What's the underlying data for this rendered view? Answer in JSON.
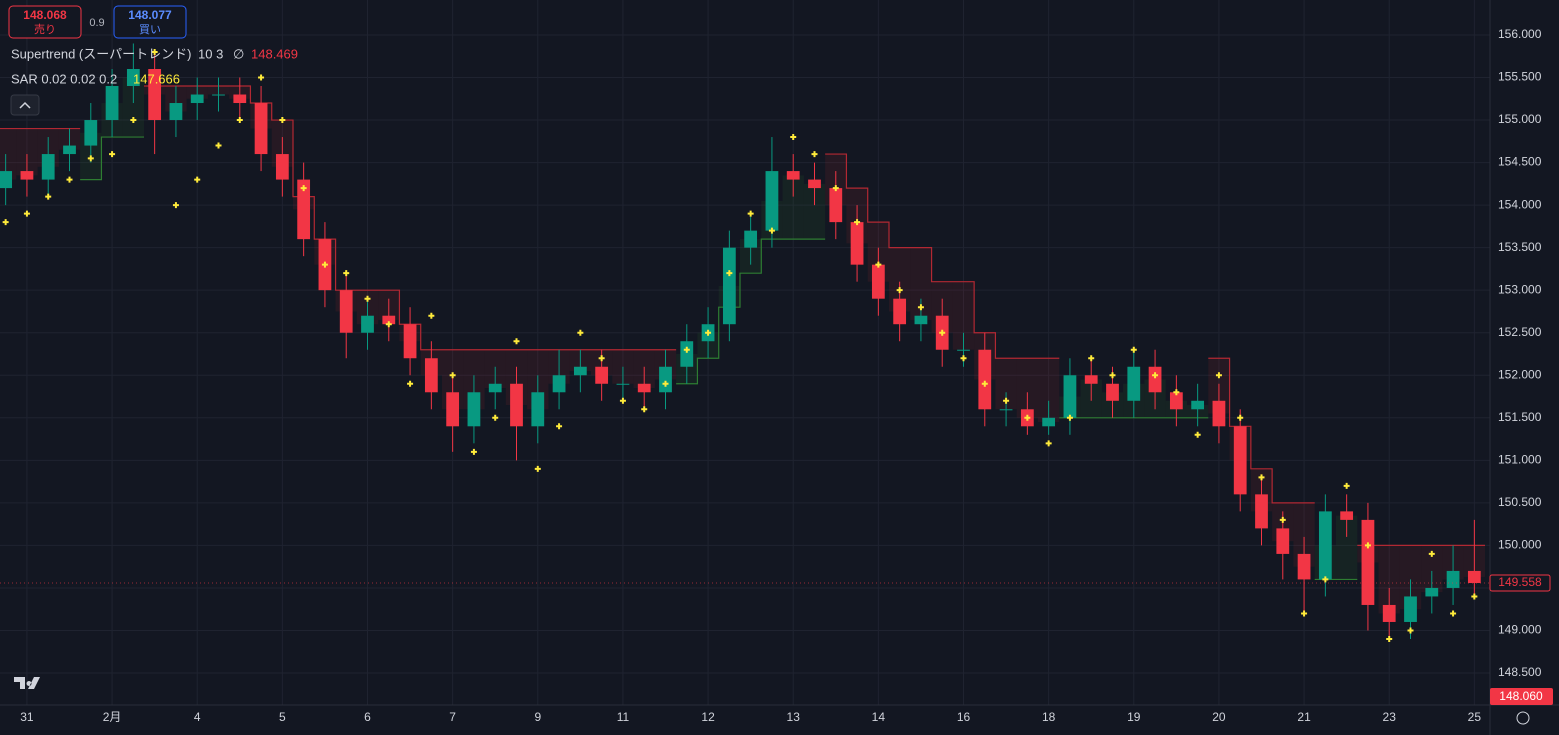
{
  "chart_data": {
    "type": "candlestick",
    "header": {
      "sell_price": "148.068",
      "sell_label": "売り",
      "spread": "0.9",
      "buy_price": "148.077",
      "buy_label": "買い",
      "supertrend_name": "Supertrend (スーパートレンド)",
      "supertrend_params": "10 3",
      "supertrend_symbol": "∅",
      "supertrend_value": "148.469",
      "sar_name": "SAR 0.02 0.02 0.2",
      "sar_value": "147.666"
    },
    "last_price_label": "149.558",
    "low_price_label": "148.060",
    "categories": [
      null,
      "31",
      null,
      null,
      null,
      "2月",
      null,
      null,
      null,
      "4",
      null,
      null,
      null,
      "5",
      null,
      null,
      null,
      "6",
      null,
      null,
      null,
      "7",
      null,
      null,
      null,
      "9",
      null,
      null,
      null,
      "11",
      null,
      null,
      null,
      "12",
      null,
      null,
      null,
      "13",
      null,
      null,
      null,
      "14",
      null,
      null,
      null,
      "16",
      null,
      null,
      null,
      "18",
      null,
      null,
      null,
      "19",
      null,
      null,
      null,
      "20",
      null,
      null,
      null,
      "21",
      null,
      null,
      null,
      "23",
      null,
      null,
      null,
      "25"
    ],
    "open": [
      154.2,
      154.4,
      154.3,
      154.6,
      154.7,
      155.0,
      155.4,
      155.6,
      155.0,
      155.2,
      155.3,
      155.3,
      155.2,
      154.6,
      154.3,
      153.6,
      153.0,
      152.5,
      152.7,
      152.6,
      152.2,
      151.8,
      151.4,
      151.8,
      151.9,
      151.4,
      151.8,
      152.0,
      152.1,
      151.9,
      151.9,
      151.8,
      152.1,
      152.4,
      152.6,
      153.5,
      153.7,
      154.4,
      154.3,
      154.2,
      153.8,
      153.3,
      152.9,
      152.6,
      152.7,
      152.3,
      152.3,
      151.6,
      151.6,
      151.4,
      151.5,
      152.0,
      151.9,
      151.7,
      152.1,
      151.8,
      151.6,
      151.7,
      151.4,
      150.6,
      150.2,
      149.9,
      149.6,
      150.4,
      150.3,
      149.3,
      149.1,
      149.4,
      149.5,
      149.7
    ],
    "high": [
      154.6,
      154.6,
      154.8,
      154.9,
      155.2,
      155.6,
      155.9,
      155.8,
      155.4,
      155.5,
      155.5,
      155.5,
      155.4,
      154.8,
      154.5,
      153.8,
      153.2,
      152.9,
      152.9,
      152.8,
      152.4,
      152.0,
      152.0,
      152.1,
      152.1,
      152.0,
      152.3,
      152.3,
      152.3,
      152.1,
      152.1,
      152.3,
      152.6,
      152.8,
      153.7,
      153.9,
      154.8,
      154.6,
      154.5,
      154.4,
      154.0,
      153.5,
      153.1,
      152.9,
      152.9,
      152.5,
      152.5,
      151.8,
      151.8,
      151.7,
      152.2,
      152.2,
      152.1,
      152.3,
      152.3,
      152.0,
      151.9,
      151.9,
      151.6,
      150.8,
      150.4,
      150.1,
      150.6,
      150.6,
      150.5,
      149.5,
      149.6,
      149.7,
      150.0,
      150.3
    ],
    "low": [
      154.0,
      154.1,
      154.1,
      154.4,
      154.5,
      154.8,
      155.2,
      154.6,
      154.8,
      155.0,
      155.1,
      155.0,
      154.4,
      154.1,
      153.4,
      152.8,
      152.2,
      152.3,
      152.4,
      152.0,
      151.6,
      151.1,
      151.2,
      151.6,
      151.0,
      151.2,
      151.6,
      151.8,
      151.7,
      151.7,
      151.6,
      151.6,
      151.9,
      152.2,
      152.4,
      153.3,
      153.5,
      154.1,
      154.0,
      153.6,
      153.1,
      152.7,
      152.4,
      152.4,
      152.1,
      152.1,
      151.4,
      151.4,
      151.3,
      151.3,
      151.3,
      151.7,
      151.5,
      151.5,
      151.6,
      151.4,
      151.4,
      151.2,
      150.4,
      150.0,
      149.6,
      149.2,
      149.4,
      150.1,
      149.0,
      148.9,
      148.9,
      149.2,
      149.3,
      149.4
    ],
    "close": [
      154.4,
      154.3,
      154.6,
      154.7,
      155.0,
      155.4,
      155.6,
      155.0,
      155.2,
      155.3,
      155.3,
      155.2,
      154.6,
      154.3,
      153.6,
      153.0,
      152.5,
      152.7,
      152.6,
      152.2,
      151.8,
      151.4,
      151.8,
      151.9,
      151.4,
      151.8,
      152.0,
      152.1,
      151.9,
      151.9,
      151.8,
      152.1,
      152.4,
      152.6,
      153.5,
      153.7,
      154.4,
      154.3,
      154.2,
      153.8,
      153.3,
      152.9,
      152.6,
      152.7,
      152.3,
      152.3,
      151.6,
      151.6,
      151.4,
      151.5,
      152.0,
      151.9,
      151.7,
      152.1,
      151.8,
      151.6,
      151.7,
      151.4,
      150.6,
      150.2,
      149.9,
      149.6,
      150.4,
      150.3,
      149.3,
      149.1,
      149.4,
      149.5,
      149.7,
      149.558
    ],
    "up_color": "#089981",
    "down_color": "#f23645",
    "sar": {
      "color": "#ffeb3b",
      "values": [
        153.8,
        153.9,
        154.1,
        154.3,
        154.55,
        154.6,
        155.0,
        155.8,
        154.0,
        154.3,
        154.7,
        155.0,
        155.5,
        155.0,
        154.2,
        153.3,
        153.2,
        152.9,
        152.6,
        151.9,
        152.7,
        152.0,
        151.1,
        151.5,
        152.4,
        150.9,
        151.4,
        152.5,
        152.2,
        151.7,
        151.6,
        151.9,
        152.3,
        152.5,
        153.2,
        153.9,
        153.7,
        154.8,
        154.6,
        154.2,
        153.8,
        153.3,
        153.0,
        152.8,
        152.5,
        152.2,
        151.9,
        151.7,
        151.5,
        151.2,
        151.5,
        152.2,
        152.0,
        152.3,
        152.0,
        151.8,
        151.3,
        152.0,
        151.5,
        150.8,
        150.3,
        149.2,
        149.6,
        150.7,
        150.0,
        148.9,
        149.0,
        149.9,
        149.2,
        149.4
      ]
    },
    "supertrend": {
      "up_color": "#2e7d32",
      "down_color": "#b22833",
      "up": [
        null,
        null,
        null,
        null,
        154.3,
        154.8,
        154.8,
        null,
        null,
        null,
        null,
        null,
        null,
        null,
        null,
        null,
        null,
        null,
        null,
        null,
        null,
        null,
        null,
        null,
        null,
        null,
        null,
        null,
        null,
        null,
        null,
        null,
        151.9,
        152.2,
        152.8,
        153.2,
        153.6,
        153.6,
        153.6,
        null,
        null,
        null,
        null,
        null,
        null,
        null,
        null,
        null,
        null,
        null,
        151.5,
        151.5,
        151.5,
        151.5,
        151.5,
        151.5,
        151.5,
        null,
        null,
        null,
        null,
        null,
        149.6,
        149.6,
        null,
        null,
        null,
        null,
        null,
        null
      ],
      "down": [
        154.9,
        154.9,
        154.9,
        154.9,
        null,
        null,
        null,
        155.4,
        155.4,
        155.4,
        155.4,
        155.4,
        155.2,
        155.0,
        154.1,
        153.6,
        153.0,
        153.0,
        153.0,
        152.6,
        152.3,
        152.3,
        152.3,
        152.3,
        152.3,
        152.3,
        152.3,
        152.3,
        152.3,
        152.3,
        152.3,
        152.3,
        null,
        null,
        null,
        null,
        null,
        null,
        null,
        154.6,
        154.2,
        153.8,
        153.5,
        153.5,
        153.1,
        153.1,
        152.5,
        152.2,
        152.2,
        152.2,
        null,
        null,
        null,
        null,
        null,
        null,
        null,
        152.2,
        151.4,
        150.9,
        150.5,
        150.5,
        null,
        null,
        150.0,
        150.0,
        150.0,
        150.0,
        150.0,
        150.0
      ]
    },
    "ylim": [
      148.124,
      156.411
    ],
    "yticks": [
      {
        "value": 148.5,
        "label": "148.500"
      },
      {
        "value": 149.0,
        "label": "149.000"
      },
      {
        "value": 149.5,
        "label": "149.500"
      },
      {
        "value": 150.0,
        "label": "150.000"
      },
      {
        "value": 150.5,
        "label": "150.500"
      },
      {
        "value": 151.0,
        "label": "151.000"
      },
      {
        "value": 151.5,
        "label": "151.500"
      },
      {
        "value": 152.0,
        "label": "152.000"
      },
      {
        "value": 152.5,
        "label": "152.500"
      },
      {
        "value": 153.0,
        "label": "153.000"
      },
      {
        "value": 153.5,
        "label": "153.500"
      },
      {
        "value": 154.0,
        "label": "154.000"
      },
      {
        "value": 154.5,
        "label": "154.500"
      },
      {
        "value": 155.0,
        "label": "155.000"
      },
      {
        "value": 155.5,
        "label": "155.500"
      },
      {
        "value": 156.0,
        "label": "156.000"
      }
    ],
    "grid": true
  }
}
